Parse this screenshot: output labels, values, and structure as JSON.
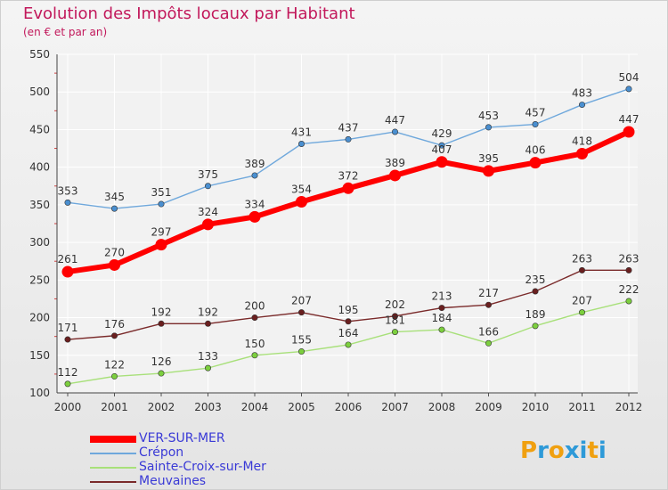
{
  "header": {
    "title": "Evolution des Impôts locaux par Habitant",
    "subtitle": "(en € et par an)"
  },
  "logo": {
    "text": "Proxiti",
    "letter_colors": [
      "#f0a010",
      "#2e9ad8",
      "#f0a010",
      "#2e9ad8",
      "#2e9ad8",
      "#f0a010",
      "#2e9ad8"
    ]
  },
  "chart_data": {
    "type": "line",
    "title": "Evolution des Impôts locaux par Habitant",
    "subtitle": "(en € et par an)",
    "xlabel": "",
    "ylabel": "",
    "x": [
      "2000",
      "2001",
      "2002",
      "2003",
      "2004",
      "2005",
      "2006",
      "2007",
      "2008",
      "2009",
      "2010",
      "2011",
      "2012"
    ],
    "ylim": [
      100,
      550
    ],
    "yticks": [
      100,
      150,
      200,
      250,
      300,
      350,
      400,
      450,
      500,
      550
    ],
    "grid": true,
    "legend_position": "bottom-left",
    "series": [
      {
        "name": "VER-SUR-MER",
        "color": "#ff0000",
        "values": [
          261,
          270,
          297,
          324,
          334,
          354,
          372,
          389,
          407,
          395,
          406,
          418,
          447
        ]
      },
      {
        "name": "Crépon",
        "color": "#6fa8dc",
        "values": [
          353,
          345,
          351,
          375,
          389,
          431,
          437,
          447,
          429,
          453,
          457,
          483,
          504
        ]
      },
      {
        "name": "Sainte-Croix-sur-Mer",
        "color": "#a8e07a",
        "values": [
          112,
          122,
          126,
          133,
          150,
          155,
          164,
          181,
          184,
          166,
          189,
          207,
          222
        ]
      },
      {
        "name": "Meuvaines",
        "color": "#7a2a2a",
        "values": [
          171,
          176,
          192,
          192,
          200,
          207,
          195,
          202,
          213,
          217,
          235,
          263,
          263
        ]
      }
    ]
  }
}
